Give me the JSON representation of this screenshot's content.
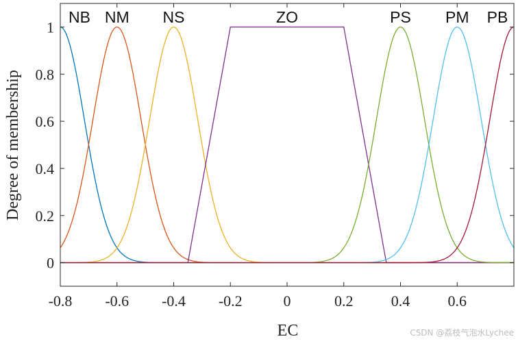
{
  "chart_data": {
    "type": "line",
    "title": "",
    "xlabel": "EC",
    "ylabel": "Degree of membership",
    "xlim": [
      -0.8,
      0.8
    ],
    "ylim": [
      -0.1,
      1.1
    ],
    "xticks": [
      -0.8,
      -0.6,
      -0.4,
      -0.2,
      0,
      0.2,
      0.4,
      0.6
    ],
    "xtick_labels": [
      "-0.8",
      "-0.6",
      "-0.4",
      "-0.2",
      "0",
      "0.2",
      "0.4",
      "0.6"
    ],
    "yticks": [
      0,
      0.2,
      0.4,
      0.6,
      0.8,
      1
    ],
    "ytick_labels": [
      "0",
      "0.2",
      "0.4",
      "0.6",
      "0.8",
      "1"
    ],
    "grid": false,
    "series": [
      {
        "name": "NB",
        "shape": "gauss",
        "center": -0.8,
        "sigma": 0.085,
        "color": "#0072BD"
      },
      {
        "name": "NM",
        "shape": "gauss",
        "center": -0.6,
        "sigma": 0.085,
        "color": "#D95319"
      },
      {
        "name": "NS",
        "shape": "gauss",
        "center": -0.4,
        "sigma": 0.085,
        "color": "#EDB120"
      },
      {
        "name": "ZO",
        "shape": "trapezoid",
        "points": [
          -0.35,
          -0.2,
          0.2,
          0.35
        ],
        "color": "#7E2F8E"
      },
      {
        "name": "PS",
        "shape": "gauss",
        "center": 0.4,
        "sigma": 0.085,
        "color": "#77AC30"
      },
      {
        "name": "PM",
        "shape": "gauss",
        "center": 0.6,
        "sigma": 0.085,
        "color": "#4DBEEE"
      },
      {
        "name": "PB",
        "shape": "gauss",
        "center": 0.8,
        "sigma": 0.085,
        "color": "#A2142F"
      }
    ]
  },
  "watermark": "CSDN @荔枝气泡水Lychee"
}
